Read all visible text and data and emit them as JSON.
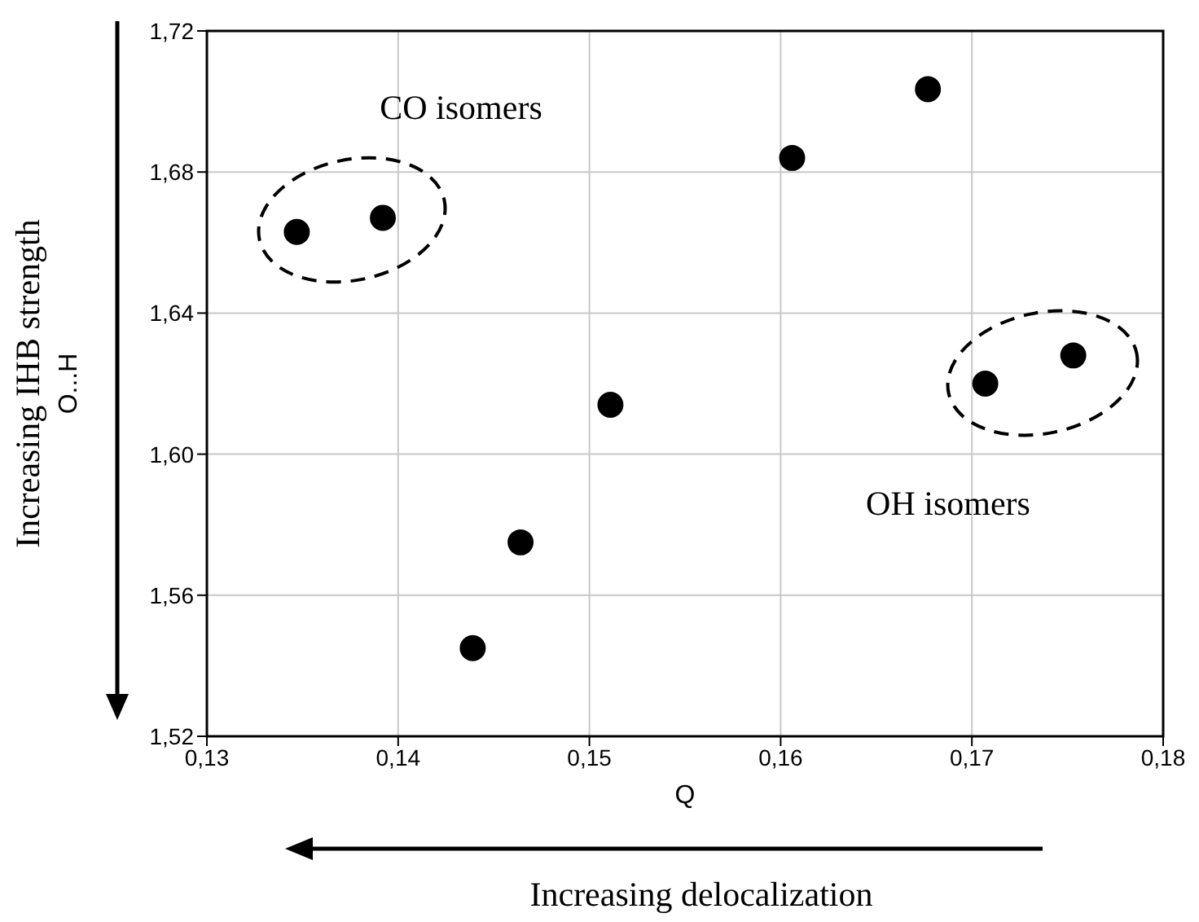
{
  "chart_data": {
    "type": "scatter",
    "xlabel": "Q",
    "ylabel": "O...H",
    "x": [
      0.1347,
      0.1392,
      0.1439,
      0.1464,
      0.1511,
      0.1606,
      0.1677,
      0.1707,
      0.1753
    ],
    "series": [
      {
        "color": "#000000",
        "values": [
          1.663,
          1.667,
          1.545,
          1.575,
          1.614,
          1.684,
          1.7035,
          1.62,
          1.628
        ]
      }
    ],
    "xlim": [
      0.13,
      0.18
    ],
    "xticks": [
      {
        "value": 0.13,
        "label": "0,13"
      },
      {
        "value": 0.14,
        "label": "0,14"
      },
      {
        "value": 0.15,
        "label": "0,15"
      },
      {
        "value": 0.16,
        "label": "0,16"
      },
      {
        "value": 0.17,
        "label": "0,17"
      },
      {
        "value": 0.18,
        "label": "0,18"
      }
    ],
    "ylim": [
      1.52,
      1.72
    ],
    "yticks": [
      {
        "value": 1.52,
        "label": "1,52"
      },
      {
        "value": 1.56,
        "label": "1,56"
      },
      {
        "value": 1.6,
        "label": "1,60"
      },
      {
        "value": 1.64,
        "label": "1,64"
      },
      {
        "value": 1.68,
        "label": "1,68"
      },
      {
        "value": 1.72,
        "label": "1,72"
      }
    ],
    "grid": true,
    "marker": "circle",
    "legend": false,
    "annotations": [
      "CO isomers",
      "OH isomers",
      "Increasing IHB strength",
      "Increasing delocalization"
    ]
  }
}
